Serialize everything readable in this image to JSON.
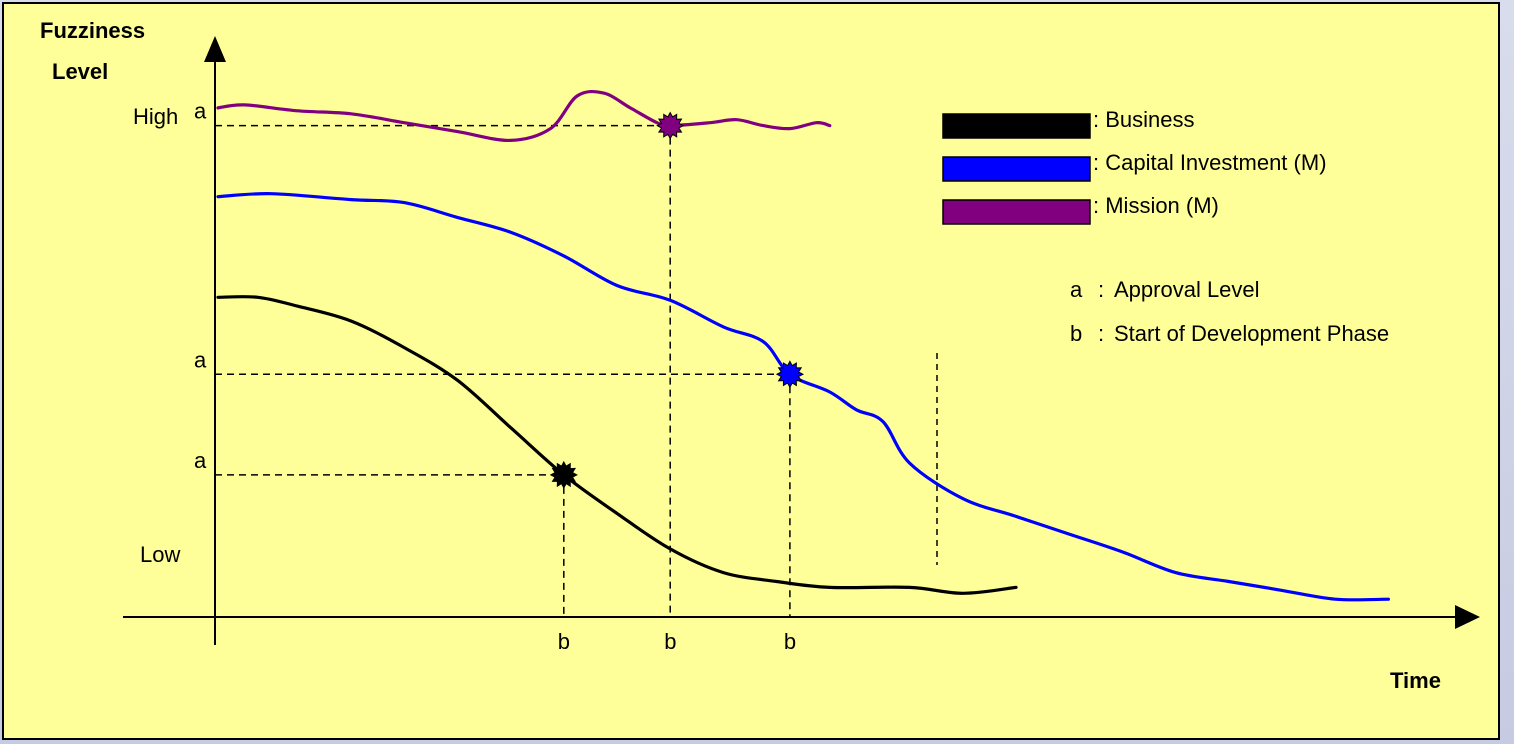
{
  "chart_data": {
    "type": "line",
    "y_axis": {
      "title_line1": "Fuzziness",
      "title_line2": "Level",
      "high_label": "High",
      "low_label": "Low"
    },
    "x_axis": {
      "title": "Time"
    },
    "markers": {
      "a_label": "a",
      "b_label": "b"
    },
    "series": [
      {
        "name": "Business",
        "color": "#000000",
        "points": [
          [
            0,
            108
          ],
          [
            3,
            108
          ],
          [
            6,
            105
          ],
          [
            10,
            100
          ],
          [
            14,
            91
          ],
          [
            18,
            80
          ],
          [
            22,
            64
          ],
          [
            26,
            48
          ],
          [
            30,
            35
          ],
          [
            34,
            23
          ],
          [
            38,
            15
          ],
          [
            42,
            12
          ],
          [
            46,
            10
          ],
          [
            52,
            10
          ],
          [
            56,
            8
          ],
          [
            60,
            10
          ]
        ],
        "approval_point": [
          26,
          48
        ]
      },
      {
        "name": "Capital Investment (M)",
        "color": "#0000ff",
        "points": [
          [
            0,
            142
          ],
          [
            4,
            143
          ],
          [
            10,
            141
          ],
          [
            14,
            140
          ],
          [
            18,
            135
          ],
          [
            22,
            130
          ],
          [
            26,
            122
          ],
          [
            30,
            112
          ],
          [
            34,
            107
          ],
          [
            38,
            98
          ],
          [
            41,
            93
          ],
          [
            43,
            82
          ],
          [
            46,
            76
          ],
          [
            48,
            70
          ],
          [
            50,
            66
          ],
          [
            52,
            52
          ],
          [
            56,
            40
          ],
          [
            60,
            34
          ],
          [
            64,
            28
          ],
          [
            68,
            22
          ],
          [
            72,
            15
          ],
          [
            76,
            12
          ],
          [
            80,
            9
          ],
          [
            84,
            6
          ],
          [
            88,
            6
          ]
        ],
        "approval_point": [
          43,
          82
        ]
      },
      {
        "name": "Mission (M)",
        "color": "#800080",
        "points": [
          [
            0,
            172
          ],
          [
            2,
            173
          ],
          [
            6,
            171
          ],
          [
            10,
            170
          ],
          [
            14,
            167
          ],
          [
            18,
            164
          ],
          [
            22,
            161
          ],
          [
            25,
            165
          ],
          [
            27,
            176
          ],
          [
            29,
            177
          ],
          [
            31,
            172
          ],
          [
            33,
            167
          ],
          [
            34,
            166
          ],
          [
            37,
            167
          ],
          [
            39,
            168
          ],
          [
            41,
            166
          ],
          [
            43,
            165
          ],
          [
            45,
            167
          ],
          [
            46,
            166
          ]
        ],
        "approval_point": [
          34,
          166
        ]
      }
    ],
    "legend": [
      {
        "label": ": Business",
        "color": "#000000"
      },
      {
        "label": ": Capital Investment (M)",
        "color": "#0000ff"
      },
      {
        "label": ": Mission (M)",
        "color": "#800080"
      }
    ],
    "notes": [
      {
        "key": "a",
        "sep": ":",
        "text": "Approval Level"
      },
      {
        "key": "b",
        "sep": ":",
        "text": "Start of Development Phase"
      }
    ]
  }
}
